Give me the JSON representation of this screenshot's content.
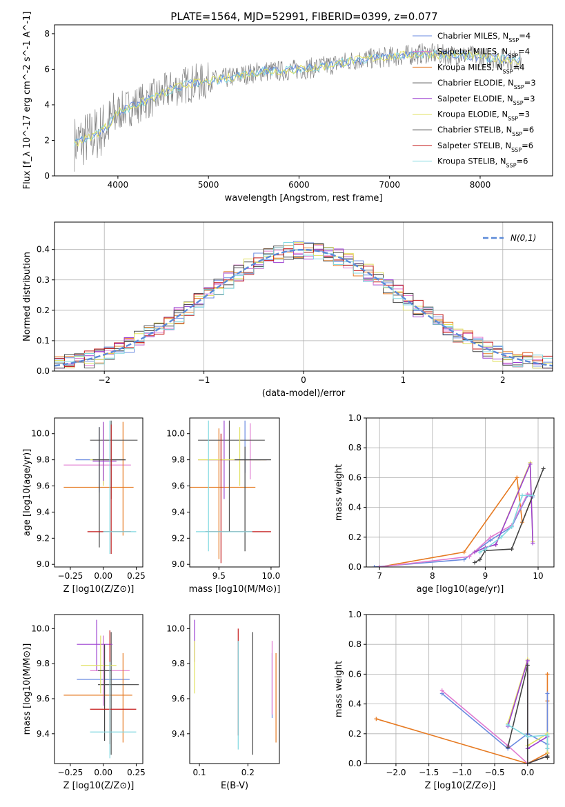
{
  "figure": {
    "title": "PLATE=1564, MJD=52991, FIBERID=0399, z=0.077"
  },
  "legend_models": [
    {
      "name": "Chabrier MILES",
      "nssp": "4",
      "color": "#6a8ae0"
    },
    {
      "name": "Salpeter MILES",
      "nssp": "4",
      "color": "#e07ad0"
    },
    {
      "name": "Kroupa MILES",
      "nssp": "4",
      "color": "#e67a22"
    },
    {
      "name": "Chabrier ELODIE",
      "nssp": "3",
      "color": "#555555"
    },
    {
      "name": "Salpeter ELODIE",
      "nssp": "3",
      "color": "#9b3fd0"
    },
    {
      "name": "Kroupa ELODIE",
      "nssp": "3",
      "color": "#e0e060"
    },
    {
      "name": "Chabrier STELIB",
      "nssp": "6",
      "color": "#444444"
    },
    {
      "name": "Salpeter STELIB",
      "nssp": "6",
      "color": "#c41a1a"
    },
    {
      "name": "Kroupa STELIB",
      "nssp": "6",
      "color": "#80d8e0"
    }
  ],
  "chart_data": [
    {
      "id": "spectrum",
      "type": "line",
      "title": "PLATE=1564, MJD=52991, FIBERID=0399, z=0.077",
      "xlabel": "wavelength [Angstrom, rest frame]",
      "ylabel": "Flux [f_λ 10^-17 erg cm^-2 s^-1 A^-1]",
      "xlim": [
        3300,
        8800
      ],
      "ylim": [
        0,
        8.5
      ],
      "xticks": [
        4000,
        5000,
        6000,
        7000,
        8000
      ],
      "yticks": [
        0,
        2,
        4,
        6,
        8
      ],
      "continuum": {
        "x": [
          3500,
          3600,
          3700,
          3800,
          3900,
          4000,
          4200,
          4400,
          4600,
          4800,
          5000,
          5200,
          5400,
          5600,
          5800,
          6000,
          6200,
          6400,
          6600,
          6800,
          7000,
          7200,
          7400,
          7600,
          7800,
          8000,
          8200,
          8400
        ],
        "y": [
          1.8,
          2.0,
          2.2,
          2.5,
          2.9,
          3.6,
          4.0,
          4.4,
          4.9,
          5.2,
          5.3,
          5.5,
          5.7,
          5.9,
          5.9,
          6.0,
          6.1,
          6.3,
          6.5,
          6.6,
          6.7,
          6.8,
          6.9,
          6.8,
          6.8,
          6.7,
          6.6,
          6.5
        ]
      },
      "legend_position": "right"
    },
    {
      "id": "residuals",
      "type": "line",
      "xlabel": "(data-model)/error",
      "ylabel": "Normed distribution",
      "xlim": [
        -2.5,
        2.5
      ],
      "ylim": [
        0,
        0.49
      ],
      "xticks": [
        -2,
        -1,
        0,
        1,
        2
      ],
      "yticks": [
        0.0,
        0.1,
        0.2,
        0.3,
        0.4
      ],
      "grid": true,
      "legend": "N(0,1)",
      "legend_position": "top-right",
      "bins": [
        -2.5,
        -2.4,
        -2.3,
        -2.2,
        -2.1,
        -2.0,
        -1.9,
        -1.8,
        -1.7,
        -1.6,
        -1.5,
        -1.4,
        -1.3,
        -1.2,
        -1.1,
        -1.0,
        -0.9,
        -0.8,
        -0.7,
        -0.6,
        -0.5,
        -0.4,
        -0.3,
        -0.2,
        -0.1,
        0.0,
        0.1,
        0.2,
        0.3,
        0.4,
        0.5,
        0.6,
        0.7,
        0.8,
        0.9,
        1.0,
        1.1,
        1.2,
        1.3,
        1.4,
        1.5,
        1.6,
        1.7,
        1.8,
        1.9,
        2.0,
        2.1,
        2.2,
        2.3,
        2.4
      ]
    },
    {
      "id": "age-vs-Z",
      "type": "scatter",
      "xlabel": "Z [log10(Z/Z⊙)]",
      "ylabel": "age [log10(age/yr)]",
      "xlim": [
        -0.37,
        0.3
      ],
      "ylim": [
        8.98,
        10.12
      ],
      "xticks": [
        -0.25,
        0.0,
        0.25
      ],
      "yticks": [
        9.0,
        9.2,
        9.4,
        9.6,
        9.8,
        10.0
      ],
      "points": [
        {
          "x": -0.03,
          "y": 9.8,
          "xerr": [
            0.18,
            0.2
          ],
          "yerr": [
            0.25,
            0.25
          ],
          "c": 1
        },
        {
          "x": 0.0,
          "y": 9.76,
          "xerr": [
            0.3,
            0.21
          ],
          "yerr": [
            0.15,
            0.3
          ],
          "c": 2
        },
        {
          "x": 0.15,
          "y": 9.59,
          "xerr": [
            0.45,
            0.08
          ],
          "yerr": [
            0.37,
            0.5
          ],
          "c": 3
        },
        {
          "x": 0.06,
          "y": 9.95,
          "xerr": [
            0.16,
            0.2
          ],
          "yerr": [
            0.45,
            0.15
          ],
          "c": 4
        },
        {
          "x": 0.0,
          "y": 9.8,
          "xerr": [
            0.1,
            0.1
          ],
          "yerr": [
            0.2,
            0.28
          ],
          "c": 6
        },
        {
          "x": 0.0,
          "y": 9.79,
          "xerr": [
            0.08,
            0.1
          ],
          "yerr": [
            0.15,
            0.3
          ],
          "c": 5
        },
        {
          "x": -0.03,
          "y": 9.8,
          "xerr": [
            0.05,
            0.2
          ],
          "yerr": [
            0.67,
            0.25
          ],
          "c": 7
        },
        {
          "x": 0.06,
          "y": 9.25,
          "xerr": [
            0.18,
            0.15
          ],
          "yerr": [
            0.17,
            0.82
          ],
          "c": 8
        },
        {
          "x": 0.05,
          "y": 9.25,
          "xerr": [
            0.05,
            0.2
          ],
          "yerr": [
            0.17,
            0.85
          ],
          "c": 9
        }
      ]
    },
    {
      "id": "age-vs-mass",
      "type": "scatter",
      "xlabel": "mass [log10(M/M⊙)]",
      "ylabel": "",
      "xlim": [
        9.22,
        10.08
      ],
      "ylim": [
        8.98,
        10.12
      ],
      "xticks": [
        9.5,
        10.0
      ],
      "yticks": [
        9.0,
        9.2,
        9.4,
        9.6,
        9.8,
        10.0
      ],
      "points": [
        {
          "x": 9.75,
          "y": 9.8,
          "xerr": [
            0.2,
            0.2
          ],
          "yerr": [
            0.1,
            0.3
          ],
          "c": 1
        },
        {
          "x": 9.8,
          "y": 9.8,
          "xerr": [
            0.5,
            0.16
          ],
          "yerr": [
            0.15,
            0.28
          ],
          "c": 2
        },
        {
          "x": 9.5,
          "y": 9.59,
          "xerr": [
            0.3,
            0.35
          ],
          "yerr": [
            0.55,
            0.45
          ],
          "c": 3
        },
        {
          "x": 9.6,
          "y": 9.95,
          "xerr": [
            0.3,
            0.34
          ],
          "yerr": [
            0.7,
            0.15
          ],
          "c": 4
        },
        {
          "x": 9.55,
          "y": 9.8,
          "xerr": [
            0.16,
            0.35
          ],
          "yerr": [
            0.3,
            0.3
          ],
          "c": 5
        },
        {
          "x": 9.7,
          "y": 9.8,
          "xerr": [
            0.4,
            0.25
          ],
          "yerr": [
            0.2,
            0.25
          ],
          "c": 6
        },
        {
          "x": 9.75,
          "y": 9.8,
          "xerr": [
            0.1,
            0.25
          ],
          "yerr": [
            0.7,
            0.1
          ],
          "c": 7
        },
        {
          "x": 9.52,
          "y": 9.25,
          "xerr": [
            0.15,
            0.48
          ],
          "yerr": [
            0.24,
            0.75
          ],
          "c": 8
        },
        {
          "x": 9.4,
          "y": 9.25,
          "xerr": [
            0.12,
            0.42
          ],
          "yerr": [
            0.15,
            0.85
          ],
          "c": 9
        }
      ]
    },
    {
      "id": "massweight-vs-age",
      "type": "line",
      "xlabel": "age [log10(age/yr)]",
      "ylabel": "mass weight",
      "xlim": [
        6.75,
        10.3
      ],
      "ylim": [
        0,
        1.0
      ],
      "xticks": [
        7,
        8,
        9,
        10
      ],
      "yticks": [
        0.0,
        0.2,
        0.4,
        0.6,
        0.8,
        1.0
      ],
      "grid": true,
      "series": [
        {
          "c": 3,
          "x": [
            7.0,
            8.6,
            9.6,
            9.7,
            9.9
          ],
          "y": [
            0.0,
            0.1,
            0.6,
            0.3,
            0.48
          ]
        },
        {
          "c": 1,
          "x": [
            6.9,
            8.6,
            9.1,
            9.5,
            9.8,
            9.9
          ],
          "y": [
            0.0,
            0.05,
            0.18,
            0.27,
            0.48,
            0.47
          ]
        },
        {
          "c": 2,
          "x": [
            7.0,
            8.7,
            9.1,
            9.5,
            9.8,
            9.9
          ],
          "y": [
            0.0,
            0.07,
            0.2,
            0.28,
            0.49,
            0.48
          ]
        },
        {
          "c": 6,
          "x": [
            8.8,
            9.0,
            9.2,
            9.85,
            9.9
          ],
          "y": [
            0.1,
            0.13,
            0.15,
            0.7,
            0.17
          ]
        },
        {
          "c": 5,
          "x": [
            8.8,
            9.0,
            9.2,
            9.85,
            9.9
          ],
          "y": [
            0.1,
            0.13,
            0.15,
            0.69,
            0.16
          ]
        },
        {
          "c": 7,
          "x": [
            8.8,
            8.9,
            9.0,
            9.5,
            10.1
          ],
          "y": [
            0.03,
            0.05,
            0.11,
            0.12,
            0.66
          ]
        },
        {
          "c": 9,
          "x": [
            8.9,
            9.0,
            9.3,
            9.5,
            9.7,
            9.9
          ],
          "y": [
            0.1,
            0.12,
            0.2,
            0.27,
            0.48,
            0.48
          ]
        }
      ]
    },
    {
      "id": "mass-vs-Z",
      "type": "scatter",
      "xlabel": "Z [log10(Z/Z⊙)]",
      "ylabel": "mass [log10(M/M⊙)]",
      "xlim": [
        -0.37,
        0.3
      ],
      "ylim": [
        9.23,
        10.08
      ],
      "xticks": [
        -0.25,
        0.0,
        0.25
      ],
      "yticks": [
        9.4,
        9.6,
        9.8,
        10.0
      ],
      "points": [
        {
          "x": 0.0,
          "y": 9.71,
          "xerr": [
            0.2,
            0.2
          ],
          "yerr": [
            0.15,
            0.25
          ],
          "c": 1
        },
        {
          "x": 0.0,
          "y": 9.76,
          "xerr": [
            0.1,
            0.2
          ],
          "yerr": [
            0.2,
            0.2
          ],
          "c": 2
        },
        {
          "x": 0.15,
          "y": 9.62,
          "xerr": [
            0.45,
            0.07
          ],
          "yerr": [
            0.27,
            0.24
          ],
          "c": 3
        },
        {
          "x": 0.06,
          "y": 9.68,
          "xerr": [
            0.1,
            0.21
          ],
          "yerr": [
            0.4,
            0.3
          ],
          "c": 4
        },
        {
          "x": -0.05,
          "y": 9.91,
          "xerr": [
            0.15,
            0.12
          ],
          "yerr": [
            0.15,
            0.14
          ],
          "c": 5
        },
        {
          "x": -0.02,
          "y": 9.79,
          "xerr": [
            0.15,
            0.12
          ],
          "yerr": [
            0.16,
            0.17
          ],
          "c": 6
        },
        {
          "x": 0.01,
          "y": 9.76,
          "xerr": [
            0.05,
            0.05
          ],
          "yerr": [
            0.4,
            0.15
          ],
          "c": 7
        },
        {
          "x": 0.05,
          "y": 9.54,
          "xerr": [
            0.15,
            0.2
          ],
          "yerr": [
            0.2,
            0.45
          ],
          "c": 8
        },
        {
          "x": 0.05,
          "y": 9.41,
          "xerr": [
            0.15,
            0.2
          ],
          "yerr": [
            0.15,
            0.4
          ],
          "c": 9
        }
      ]
    },
    {
      "id": "mass-vs-EBV",
      "type": "scatter",
      "xlabel": "E(B-V)",
      "ylabel": "",
      "xlim": [
        0.08,
        0.265
      ],
      "ylim": [
        9.23,
        10.08
      ],
      "xticks": [
        0.1,
        0.2
      ],
      "yticks": [
        9.4,
        9.6,
        9.8,
        10.0
      ],
      "points": [
        {
          "x": 0.25,
          "y": 9.71,
          "xerr": [
            0,
            0
          ],
          "yerr": [
            0.22,
            0.15
          ],
          "c": 1
        },
        {
          "x": 0.25,
          "y": 9.76,
          "xerr": [
            0,
            0
          ],
          "yerr": [
            0.25,
            0.17
          ],
          "c": 2
        },
        {
          "x": 0.258,
          "y": 9.62,
          "xerr": [
            0,
            0
          ],
          "yerr": [
            0.27,
            0.24
          ],
          "c": 3
        },
        {
          "x": 0.09,
          "y": 9.91,
          "xerr": [
            0,
            0
          ],
          "yerr": [
            0.1,
            0.14
          ],
          "c": 5
        },
        {
          "x": 0.09,
          "y": 9.79,
          "xerr": [
            0,
            0
          ],
          "yerr": [
            0.16,
            0.14
          ],
          "c": 6
        },
        {
          "x": 0.21,
          "y": 9.68,
          "xerr": [
            0,
            0
          ],
          "yerr": [
            0.4,
            0.3
          ],
          "c": 7
        },
        {
          "x": 0.18,
          "y": 9.54,
          "xerr": [
            0,
            0
          ],
          "yerr": [
            0.15,
            0.46
          ],
          "c": 8
        },
        {
          "x": 0.18,
          "y": 9.41,
          "xerr": [
            0,
            0
          ],
          "yerr": [
            0.1,
            0.52
          ],
          "c": 9
        }
      ]
    },
    {
      "id": "massweight-vs-Z",
      "type": "line",
      "xlabel": "Z [log10(Z/Z⊙)]",
      "ylabel": "mass weight",
      "xlim": [
        -2.45,
        0.4
      ],
      "ylim": [
        0,
        1.0
      ],
      "xticks": [
        -2.0,
        -1.5,
        -1.0,
        -0.5,
        0.0
      ],
      "yticks": [
        0.0,
        0.2,
        0.4,
        0.6,
        0.8,
        1.0
      ],
      "grid": true,
      "series": [
        {
          "c": 3,
          "x": [
            -2.3,
            0.0,
            0.3,
            0.3,
            0.3,
            0.3
          ],
          "y": [
            0.3,
            0.0,
            0.07,
            0.42,
            0.6,
            0.1
          ]
        },
        {
          "c": 1,
          "x": [
            -1.3,
            -0.3,
            0.0,
            0.3,
            0.3
          ],
          "y": [
            0.47,
            0.1,
            0.2,
            0.13,
            0.47
          ]
        },
        {
          "c": 2,
          "x": [
            -1.3,
            -0.3,
            0.0,
            0.3,
            0.3
          ],
          "y": [
            0.49,
            0.12,
            0.0,
            0.05,
            0.1
          ]
        },
        {
          "c": 6,
          "x": [
            -0.3,
            0.0,
            0.0,
            0.3,
            0.3
          ],
          "y": [
            0.27,
            0.7,
            0.12,
            0.2,
            0.04
          ]
        },
        {
          "c": 5,
          "x": [
            -0.3,
            0.0,
            0.0,
            0.3
          ],
          "y": [
            0.25,
            0.69,
            0.1,
            0.18
          ]
        },
        {
          "c": 7,
          "x": [
            -0.3,
            0.0,
            0.0,
            0.3,
            0.3
          ],
          "y": [
            0.11,
            0.66,
            0.0,
            0.05,
            0.04
          ]
        },
        {
          "c": 9,
          "x": [
            -0.3,
            0.0,
            0.3,
            0.3
          ],
          "y": [
            0.26,
            0.18,
            0.19,
            0.1
          ]
        }
      ]
    }
  ]
}
